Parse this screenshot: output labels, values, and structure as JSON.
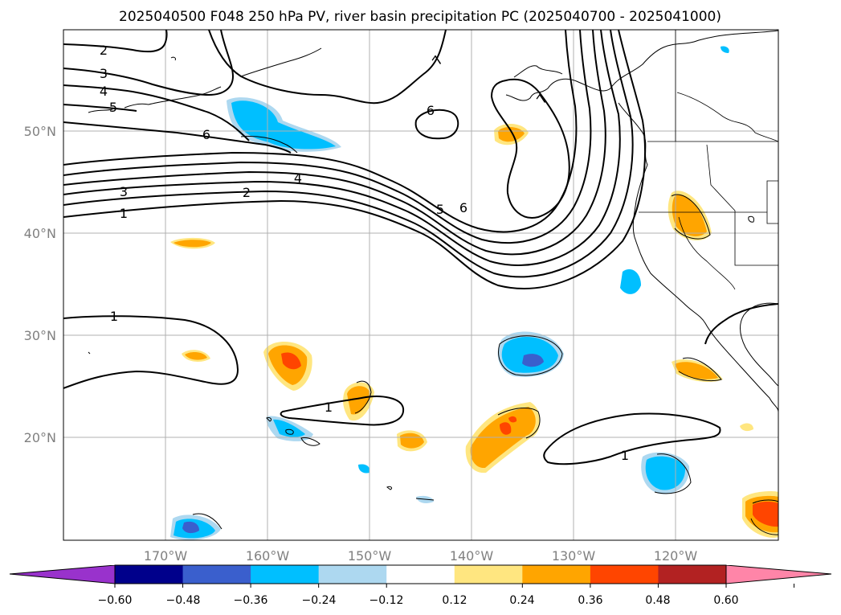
{
  "title": "2025040500 F048 250 hPa PV, river basin precipitation PC (2025040700 - 2025041000)",
  "map": {
    "lon_ticks": [
      "170°W",
      "160°W",
      "150°W",
      "140°W",
      "130°W",
      "120°W"
    ],
    "lat_ticks": [
      "50°N",
      "40°N",
      "30°N",
      "20°N"
    ],
    "pv_contour_labels": [
      "1",
      "1",
      "1",
      "1",
      "2",
      "2",
      "3",
      "3",
      "4",
      "4",
      "5",
      "5",
      "6",
      "6",
      "6",
      "7",
      "7"
    ]
  },
  "colorbar": {
    "ticks": [
      "−0.60",
      "−0.48",
      "−0.36",
      "−0.24",
      "−0.12",
      "0.12",
      "0.24",
      "0.36",
      "0.48",
      "0.60"
    ],
    "colors": [
      "#9932cc",
      "#00008b",
      "#3a5fcd",
      "#00bfff",
      "#add8f0",
      "#ffffff",
      "#ffe680",
      "#ffa500",
      "#ff4500",
      "#b22222",
      "#ff85a8"
    ]
  }
}
